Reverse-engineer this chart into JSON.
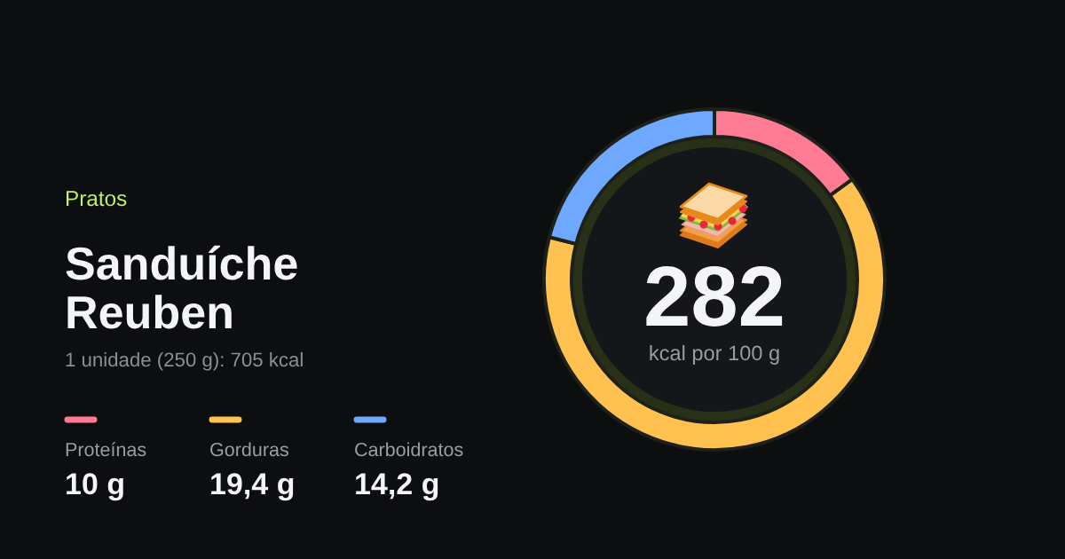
{
  "chart_data": {
    "type": "donut",
    "title": "Sanduíche Reuben",
    "subtitle": "1 unidade (250 g): 705 kcal",
    "categories": [
      "Proteínas",
      "Gorduras",
      "Carboidratos"
    ],
    "values": [
      15,
      64,
      21
    ],
    "colors": [
      "#ff7b93",
      "#ffc250",
      "#6fa8ff"
    ],
    "legend": "left",
    "annotations": [
      "Pratos",
      "282",
      "kcal por 100 g",
      {
        "text": "10 g",
        "x": "Proteínas"
      },
      {
        "text": "19,4 g",
        "x": "Gorduras"
      },
      {
        "text": "14,2 g",
        "x": "Carboidratos"
      }
    ]
  }
}
